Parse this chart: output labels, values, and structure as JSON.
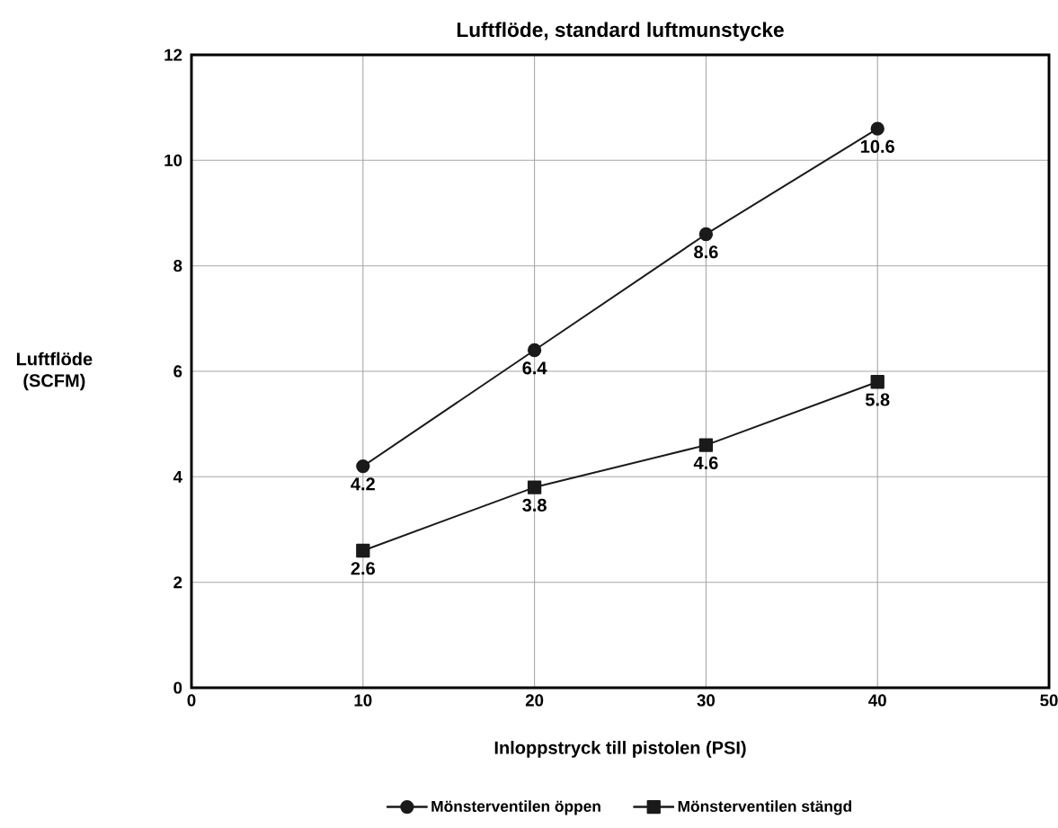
{
  "chart_data": {
    "type": "line",
    "title": "Luftflöde, standard luftmunstycke",
    "xlabel": "Inloppstryck till pistolen (PSI)",
    "ylabel": "Luftflöde (SCFM)",
    "x": [
      10,
      20,
      30,
      40
    ],
    "series": [
      {
        "name": "Mönsterventilen öppen",
        "color": "#1a1a1a",
        "marker": "circle",
        "values": [
          4.2,
          6.4,
          8.6,
          10.6
        ]
      },
      {
        "name": "Mönsterventilen stängd",
        "color": "#1a1a1a",
        "marker": "square",
        "values": [
          2.6,
          3.8,
          4.6,
          5.8
        ]
      }
    ],
    "xlim": [
      0,
      50
    ],
    "ylim": [
      0,
      12
    ],
    "xticks": [
      0,
      10,
      20,
      30,
      40,
      50
    ],
    "yticks": [
      0,
      2,
      4,
      6,
      8,
      10,
      12
    ],
    "grid": true,
    "legend": "bottom",
    "data_labels": true,
    "line_style": "solid"
  }
}
